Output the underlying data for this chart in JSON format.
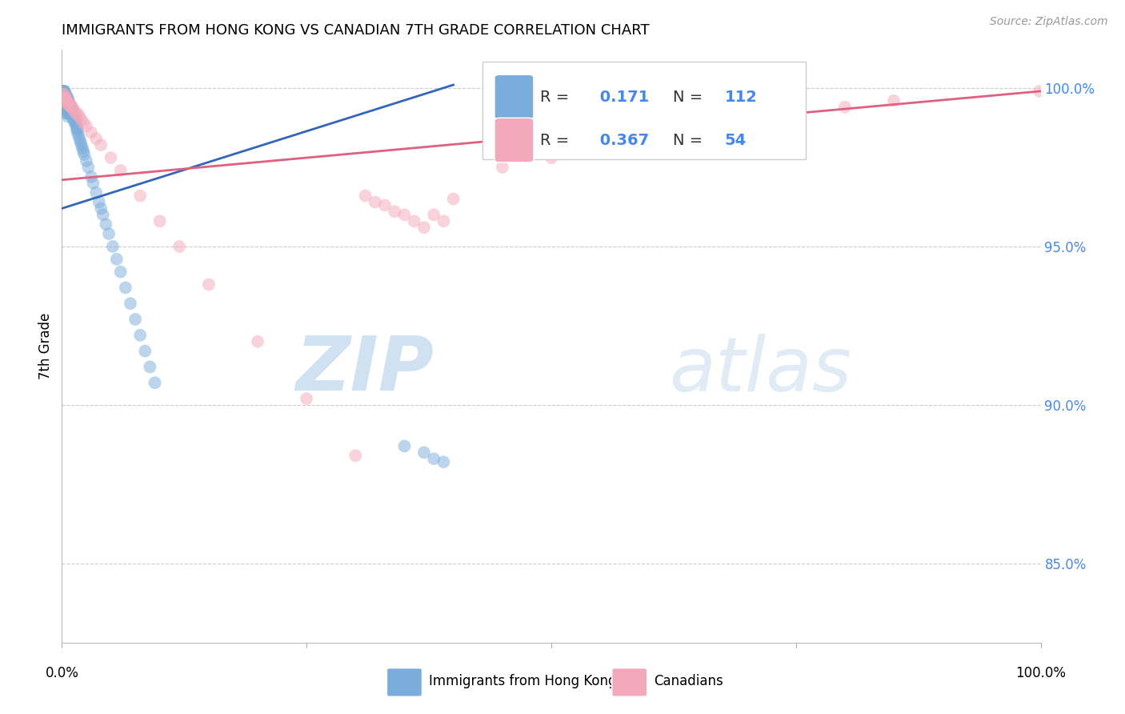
{
  "title": "IMMIGRANTS FROM HONG KONG VS CANADIAN 7TH GRADE CORRELATION CHART",
  "source": "Source: ZipAtlas.com",
  "ylabel": "7th Grade",
  "yticks": [
    0.85,
    0.9,
    0.95,
    1.0
  ],
  "ytick_labels": [
    "85.0%",
    "90.0%",
    "95.0%",
    "100.0%"
  ],
  "xlim": [
    0.0,
    1.0
  ],
  "ylim": [
    0.825,
    1.012
  ],
  "blue_R": 0.171,
  "blue_N": 112,
  "pink_R": 0.367,
  "pink_N": 54,
  "blue_color": "#7AADDB",
  "pink_color": "#F4A8BB",
  "blue_line_color": "#3366BB",
  "pink_line_color": "#E06080",
  "legend_label_blue": "Immigrants from Hong Kong",
  "legend_label_pink": "Canadians",
  "watermark_zip": "ZIP",
  "watermark_atlas": "atlas",
  "blue_points_x": [
    0.001,
    0.001,
    0.001,
    0.001,
    0.001,
    0.001,
    0.001,
    0.001,
    0.001,
    0.001,
    0.002,
    0.002,
    0.002,
    0.002,
    0.002,
    0.002,
    0.002,
    0.002,
    0.002,
    0.002,
    0.003,
    0.003,
    0.003,
    0.003,
    0.003,
    0.003,
    0.003,
    0.003,
    0.003,
    0.003,
    0.004,
    0.004,
    0.004,
    0.004,
    0.004,
    0.004,
    0.004,
    0.004,
    0.004,
    0.004,
    0.005,
    0.005,
    0.005,
    0.005,
    0.005,
    0.005,
    0.005,
    0.005,
    0.005,
    0.005,
    0.006,
    0.006,
    0.006,
    0.006,
    0.006,
    0.006,
    0.006,
    0.007,
    0.007,
    0.007,
    0.007,
    0.008,
    0.008,
    0.008,
    0.008,
    0.009,
    0.009,
    0.009,
    0.01,
    0.01,
    0.011,
    0.011,
    0.012,
    0.012,
    0.013,
    0.013,
    0.014,
    0.015,
    0.015,
    0.016,
    0.016,
    0.017,
    0.018,
    0.019,
    0.02,
    0.021,
    0.022,
    0.023,
    0.025,
    0.027,
    0.03,
    0.032,
    0.035,
    0.038,
    0.04,
    0.042,
    0.045,
    0.048,
    0.052,
    0.056,
    0.06,
    0.065,
    0.07,
    0.075,
    0.08,
    0.085,
    0.09,
    0.095,
    0.35,
    0.37,
    0.38,
    0.39
  ],
  "blue_points_y": [
    0.999,
    0.999,
    0.999,
    0.999,
    0.999,
    0.999,
    0.998,
    0.998,
    0.998,
    0.997,
    0.999,
    0.999,
    0.998,
    0.998,
    0.998,
    0.997,
    0.997,
    0.996,
    0.996,
    0.995,
    0.999,
    0.998,
    0.998,
    0.997,
    0.997,
    0.996,
    0.996,
    0.995,
    0.995,
    0.994,
    0.998,
    0.997,
    0.997,
    0.996,
    0.996,
    0.995,
    0.995,
    0.994,
    0.994,
    0.993,
    0.997,
    0.997,
    0.996,
    0.996,
    0.995,
    0.995,
    0.994,
    0.993,
    0.993,
    0.992,
    0.997,
    0.996,
    0.995,
    0.994,
    0.993,
    0.992,
    0.991,
    0.996,
    0.995,
    0.994,
    0.993,
    0.995,
    0.994,
    0.993,
    0.992,
    0.994,
    0.993,
    0.992,
    0.993,
    0.992,
    0.992,
    0.991,
    0.991,
    0.99,
    0.99,
    0.989,
    0.989,
    0.988,
    0.987,
    0.987,
    0.986,
    0.985,
    0.984,
    0.983,
    0.982,
    0.981,
    0.98,
    0.979,
    0.977,
    0.975,
    0.972,
    0.97,
    0.967,
    0.964,
    0.962,
    0.96,
    0.957,
    0.954,
    0.95,
    0.946,
    0.942,
    0.937,
    0.932,
    0.927,
    0.922,
    0.917,
    0.912,
    0.907,
    0.887,
    0.885,
    0.883,
    0.882
  ],
  "pink_points_x": [
    0.001,
    0.001,
    0.002,
    0.002,
    0.003,
    0.003,
    0.004,
    0.004,
    0.005,
    0.005,
    0.006,
    0.007,
    0.008,
    0.009,
    0.01,
    0.011,
    0.012,
    0.014,
    0.016,
    0.018,
    0.02,
    0.022,
    0.025,
    0.03,
    0.035,
    0.04,
    0.05,
    0.06,
    0.08,
    0.1,
    0.12,
    0.15,
    0.2,
    0.25,
    0.3,
    0.31,
    0.32,
    0.33,
    0.34,
    0.35,
    0.36,
    0.37,
    0.38,
    0.39,
    0.4,
    0.45,
    0.5,
    0.55,
    0.6,
    0.65,
    0.7,
    0.8,
    0.85,
    0.999
  ],
  "pink_points_y": [
    0.998,
    0.997,
    0.998,
    0.997,
    0.997,
    0.996,
    0.997,
    0.996,
    0.996,
    0.995,
    0.996,
    0.995,
    0.995,
    0.994,
    0.994,
    0.994,
    0.993,
    0.992,
    0.992,
    0.991,
    0.99,
    0.989,
    0.988,
    0.986,
    0.984,
    0.982,
    0.978,
    0.974,
    0.966,
    0.958,
    0.95,
    0.938,
    0.92,
    0.902,
    0.884,
    0.966,
    0.964,
    0.963,
    0.961,
    0.96,
    0.958,
    0.956,
    0.96,
    0.958,
    0.965,
    0.975,
    0.978,
    0.982,
    0.985,
    0.988,
    0.99,
    0.994,
    0.996,
    0.999
  ],
  "blue_trendline_x": [
    0.0,
    0.4
  ],
  "blue_trendline_y": [
    0.962,
    1.001
  ],
  "pink_trendline_x": [
    0.0,
    1.0
  ],
  "pink_trendline_y": [
    0.971,
    0.999
  ]
}
